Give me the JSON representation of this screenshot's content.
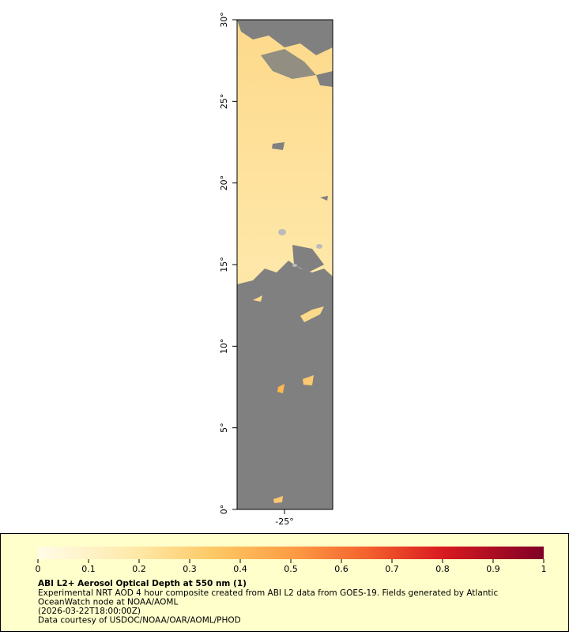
{
  "map": {
    "xlim": [
      -27.9,
      -22.05
    ],
    "ylim": [
      0,
      30
    ],
    "xticks": [
      {
        "value": -25,
        "label": "-25°"
      }
    ],
    "yticks": [
      {
        "value": 0,
        "label": "0°"
      },
      {
        "value": 5,
        "label": "5°"
      },
      {
        "value": 10,
        "label": "10°"
      },
      {
        "value": 15,
        "label": "15°"
      },
      {
        "value": 20,
        "label": "20°"
      },
      {
        "value": 25,
        "label": "25°"
      },
      {
        "value": 30,
        "label": "30°"
      }
    ]
  },
  "colorbar": {
    "range": [
      0,
      1
    ],
    "ticks": [
      0,
      0.1,
      0.2,
      0.3,
      0.4,
      0.5,
      0.6,
      0.7,
      0.8,
      0.9,
      1
    ]
  },
  "caption": {
    "title": "ABI L2+ Aerosol Optical Depth at 550 nm (1)",
    "lines": [
      "Experimental NRT AOD 4 hour composite created from ABI L2 data from GOES-19. Fields generated by Atlantic",
      "OceanWatch node at NOAA/AOML",
      "(2026-03-22T18:00:00Z)",
      "Data courtesy of USDOC/NOAA/OAR/AOML/PHOD"
    ]
  }
}
